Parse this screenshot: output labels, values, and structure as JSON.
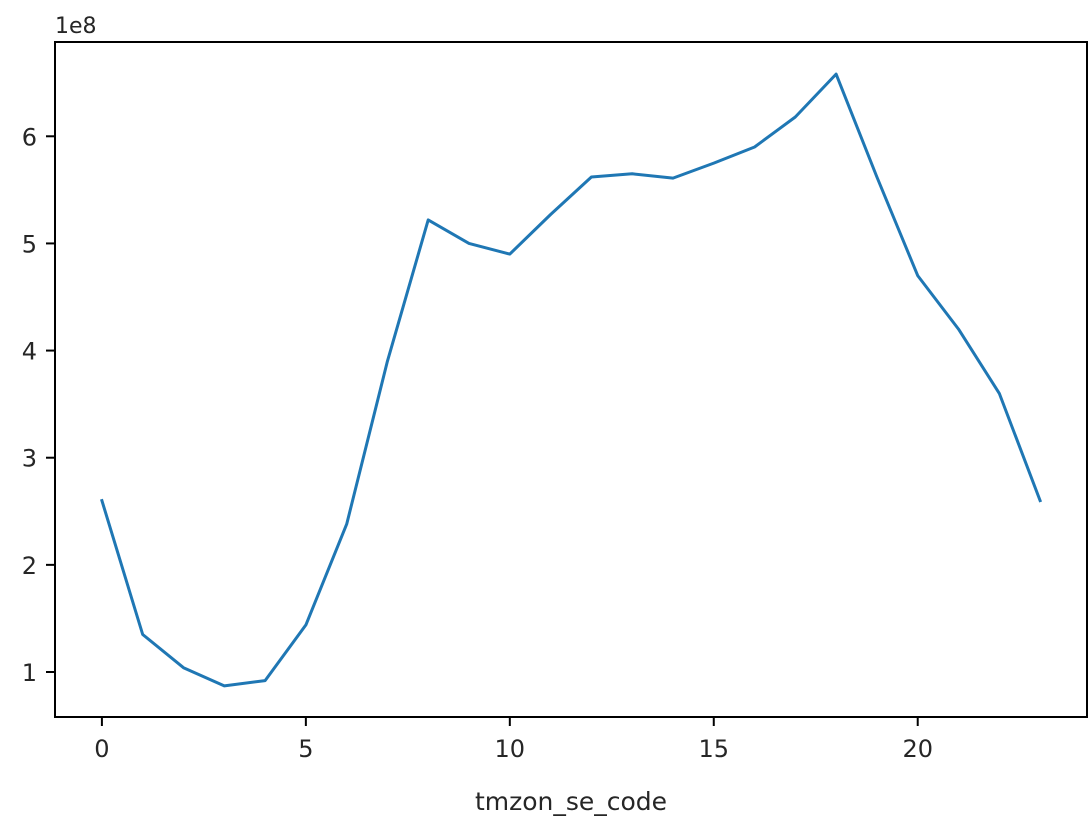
{
  "chart_data": {
    "type": "line",
    "title": "",
    "xlabel": "tmzon_se_code",
    "ylabel": "",
    "y_offset_label": "1e8",
    "x_ticks": [
      0,
      5,
      10,
      15,
      20
    ],
    "x_tick_labels": [
      "0",
      "5",
      "10",
      "15",
      "20"
    ],
    "y_ticks": [
      1,
      2,
      3,
      4,
      5,
      6
    ],
    "y_tick_labels": [
      "1",
      "2",
      "3",
      "4",
      "5",
      "6"
    ],
    "xlim": [
      -1.15,
      24.15
    ],
    "ylim": [
      0.58,
      6.88
    ],
    "grid": false,
    "legend": "none",
    "series": [
      {
        "color": "#1f77b4",
        "x": [
          0,
          1,
          2,
          3,
          4,
          5,
          6,
          7,
          8,
          9,
          10,
          11,
          12,
          13,
          14,
          15,
          16,
          17,
          18,
          19,
          20,
          21,
          22,
          23
        ],
        "values": [
          2.6,
          1.35,
          1.04,
          0.87,
          0.92,
          1.44,
          2.38,
          3.9,
          5.22,
          5.0,
          4.9,
          5.27,
          5.62,
          5.65,
          5.61,
          5.75,
          5.9,
          6.18,
          6.58,
          5.62,
          4.7,
          4.2,
          3.6,
          2.6
        ]
      }
    ]
  }
}
